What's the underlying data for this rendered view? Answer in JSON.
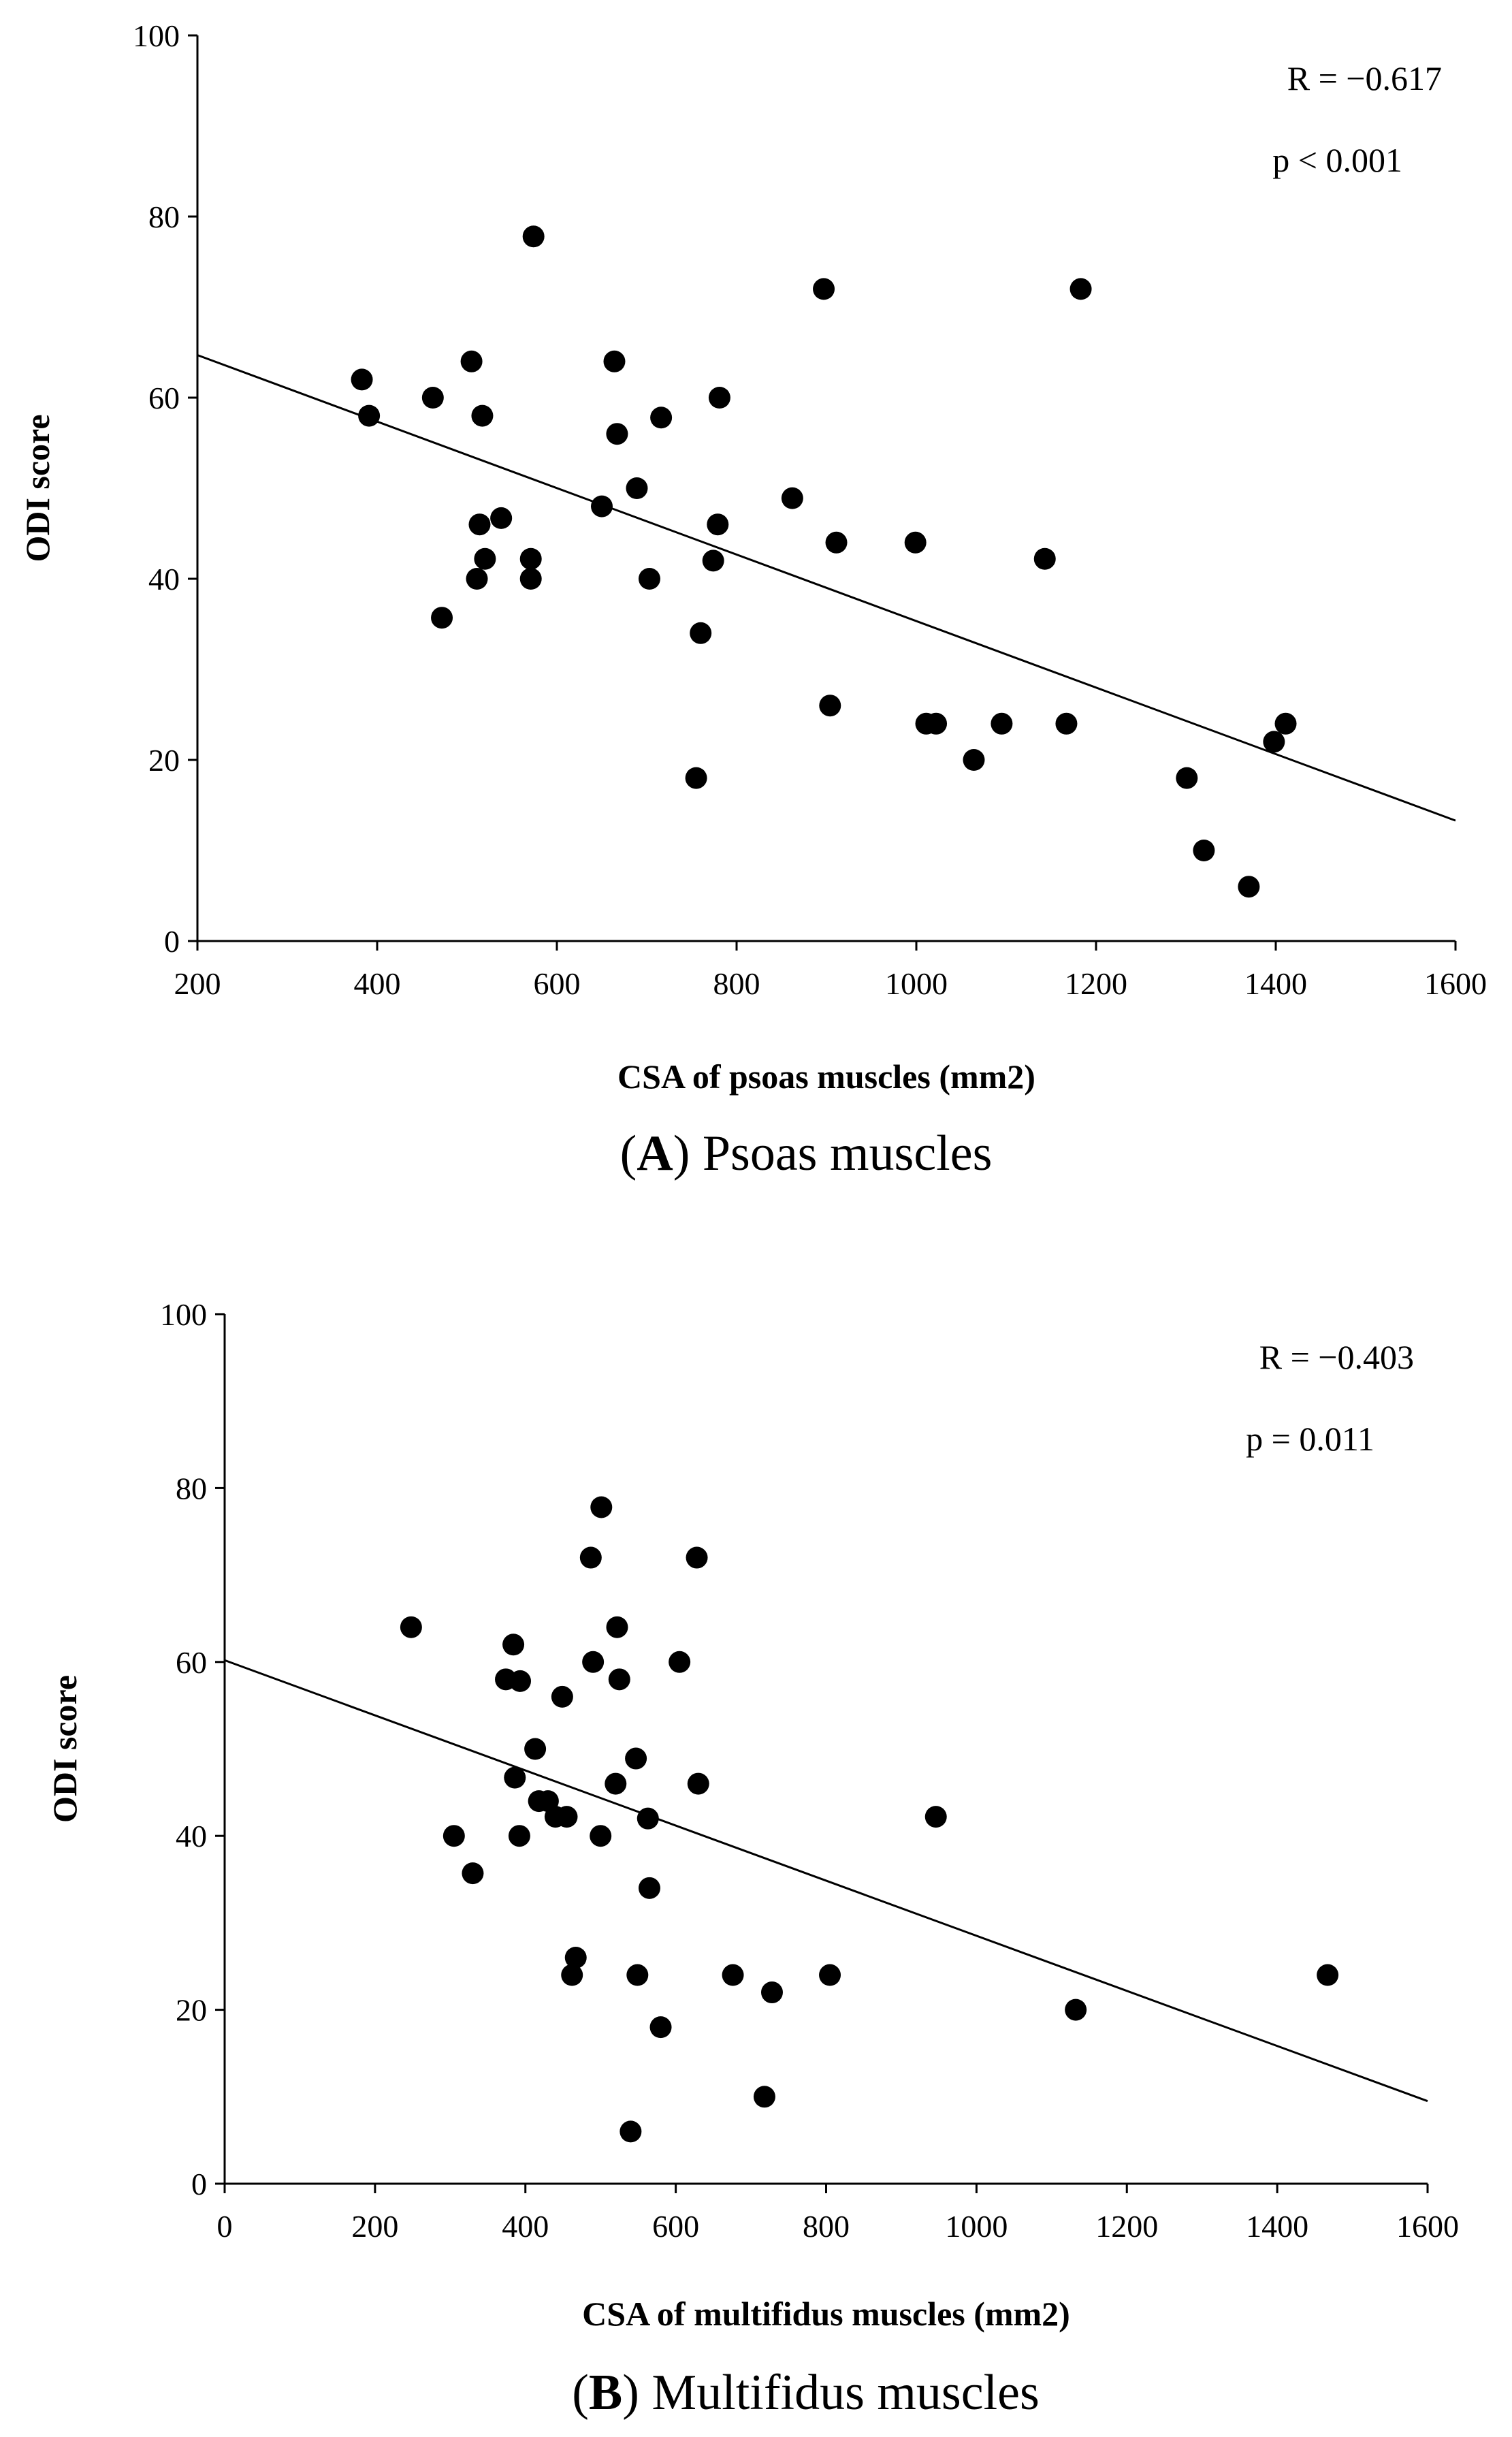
{
  "chart_data": [
    {
      "type": "scatter",
      "panel_letter": "A",
      "caption_text": "Psoas muscles",
      "xlabel": "CSA of psoas muscles (mm2)",
      "ylabel": "ODI score",
      "xlim": [
        200,
        1600
      ],
      "ylim": [
        0,
        100
      ],
      "xticks": [
        200,
        400,
        600,
        800,
        1000,
        1200,
        1400,
        1600
      ],
      "yticks": [
        0,
        20,
        40,
        60,
        80,
        100
      ],
      "annotation_r": "R = −0.617",
      "annotation_p": "p < 0.001",
      "regression_line": {
        "x": [
          200,
          1600
        ],
        "y": [
          64.7,
          13.3
        ]
      },
      "points": [
        {
          "x": 383,
          "y": 62
        },
        {
          "x": 391,
          "y": 58
        },
        {
          "x": 462,
          "y": 60
        },
        {
          "x": 472,
          "y": 35.7
        },
        {
          "x": 505,
          "y": 64
        },
        {
          "x": 511,
          "y": 40
        },
        {
          "x": 514,
          "y": 46
        },
        {
          "x": 517,
          "y": 58
        },
        {
          "x": 520,
          "y": 42.2
        },
        {
          "x": 538,
          "y": 46.7
        },
        {
          "x": 571,
          "y": 42.2
        },
        {
          "x": 571,
          "y": 40
        },
        {
          "x": 574,
          "y": 77.8
        },
        {
          "x": 650,
          "y": 48
        },
        {
          "x": 664,
          "y": 64
        },
        {
          "x": 667,
          "y": 56
        },
        {
          "x": 689,
          "y": 50
        },
        {
          "x": 703,
          "y": 40
        },
        {
          "x": 716,
          "y": 57.8
        },
        {
          "x": 755,
          "y": 18
        },
        {
          "x": 760,
          "y": 34
        },
        {
          "x": 774,
          "y": 42
        },
        {
          "x": 779,
          "y": 46
        },
        {
          "x": 781,
          "y": 60
        },
        {
          "x": 862,
          "y": 48.9
        },
        {
          "x": 897,
          "y": 72
        },
        {
          "x": 904,
          "y": 26
        },
        {
          "x": 911,
          "y": 44
        },
        {
          "x": 999,
          "y": 44
        },
        {
          "x": 1011,
          "y": 24
        },
        {
          "x": 1022,
          "y": 24
        },
        {
          "x": 1064,
          "y": 20
        },
        {
          "x": 1095,
          "y": 24
        },
        {
          "x": 1143,
          "y": 42.2
        },
        {
          "x": 1167,
          "y": 24
        },
        {
          "x": 1183,
          "y": 72
        },
        {
          "x": 1301,
          "y": 18
        },
        {
          "x": 1320,
          "y": 10
        },
        {
          "x": 1370,
          "y": 6
        },
        {
          "x": 1398,
          "y": 22
        },
        {
          "x": 1411,
          "y": 24
        }
      ]
    },
    {
      "type": "scatter",
      "panel_letter": "B",
      "caption_text": "Multifidus muscles",
      "xlabel": "CSA of multifidus muscles (mm2)",
      "ylabel": "ODI score",
      "xlim": [
        0,
        1600
      ],
      "ylim": [
        0,
        100
      ],
      "xticks": [
        0,
        200,
        400,
        600,
        800,
        1000,
        1200,
        1400,
        1600
      ],
      "yticks": [
        0,
        20,
        40,
        60,
        80,
        100
      ],
      "annotation_r": "R = −0.403",
      "annotation_p": "p = 0.011",
      "regression_line": {
        "x": [
          0,
          1600
        ],
        "y": [
          60.2,
          9.5
        ]
      },
      "points": [
        {
          "x": 248,
          "y": 64
        },
        {
          "x": 305,
          "y": 40
        },
        {
          "x": 330,
          "y": 35.7
        },
        {
          "x": 374,
          "y": 58
        },
        {
          "x": 384,
          "y": 62
        },
        {
          "x": 386,
          "y": 46.7
        },
        {
          "x": 392,
          "y": 40
        },
        {
          "x": 393,
          "y": 57.8
        },
        {
          "x": 413,
          "y": 50
        },
        {
          "x": 418,
          "y": 44
        },
        {
          "x": 430,
          "y": 44
        },
        {
          "x": 440,
          "y": 42.2
        },
        {
          "x": 449,
          "y": 56
        },
        {
          "x": 455,
          "y": 42.2
        },
        {
          "x": 462,
          "y": 24
        },
        {
          "x": 467,
          "y": 26
        },
        {
          "x": 487,
          "y": 72
        },
        {
          "x": 490,
          "y": 60
        },
        {
          "x": 500,
          "y": 40
        },
        {
          "x": 501,
          "y": 77.8
        },
        {
          "x": 520,
          "y": 46
        },
        {
          "x": 522,
          "y": 64
        },
        {
          "x": 525,
          "y": 58
        },
        {
          "x": 540,
          "y": 6
        },
        {
          "x": 547,
          "y": 48.9
        },
        {
          "x": 549,
          "y": 24
        },
        {
          "x": 563,
          "y": 42
        },
        {
          "x": 565,
          "y": 34
        },
        {
          "x": 580,
          "y": 18
        },
        {
          "x": 605,
          "y": 60
        },
        {
          "x": 628,
          "y": 72
        },
        {
          "x": 630,
          "y": 46
        },
        {
          "x": 676,
          "y": 24
        },
        {
          "x": 718,
          "y": 10
        },
        {
          "x": 728,
          "y": 22
        },
        {
          "x": 805,
          "y": 24
        },
        {
          "x": 946,
          "y": 42.2
        },
        {
          "x": 1132,
          "y": 20
        },
        {
          "x": 1467,
          "y": 24
        }
      ]
    }
  ]
}
